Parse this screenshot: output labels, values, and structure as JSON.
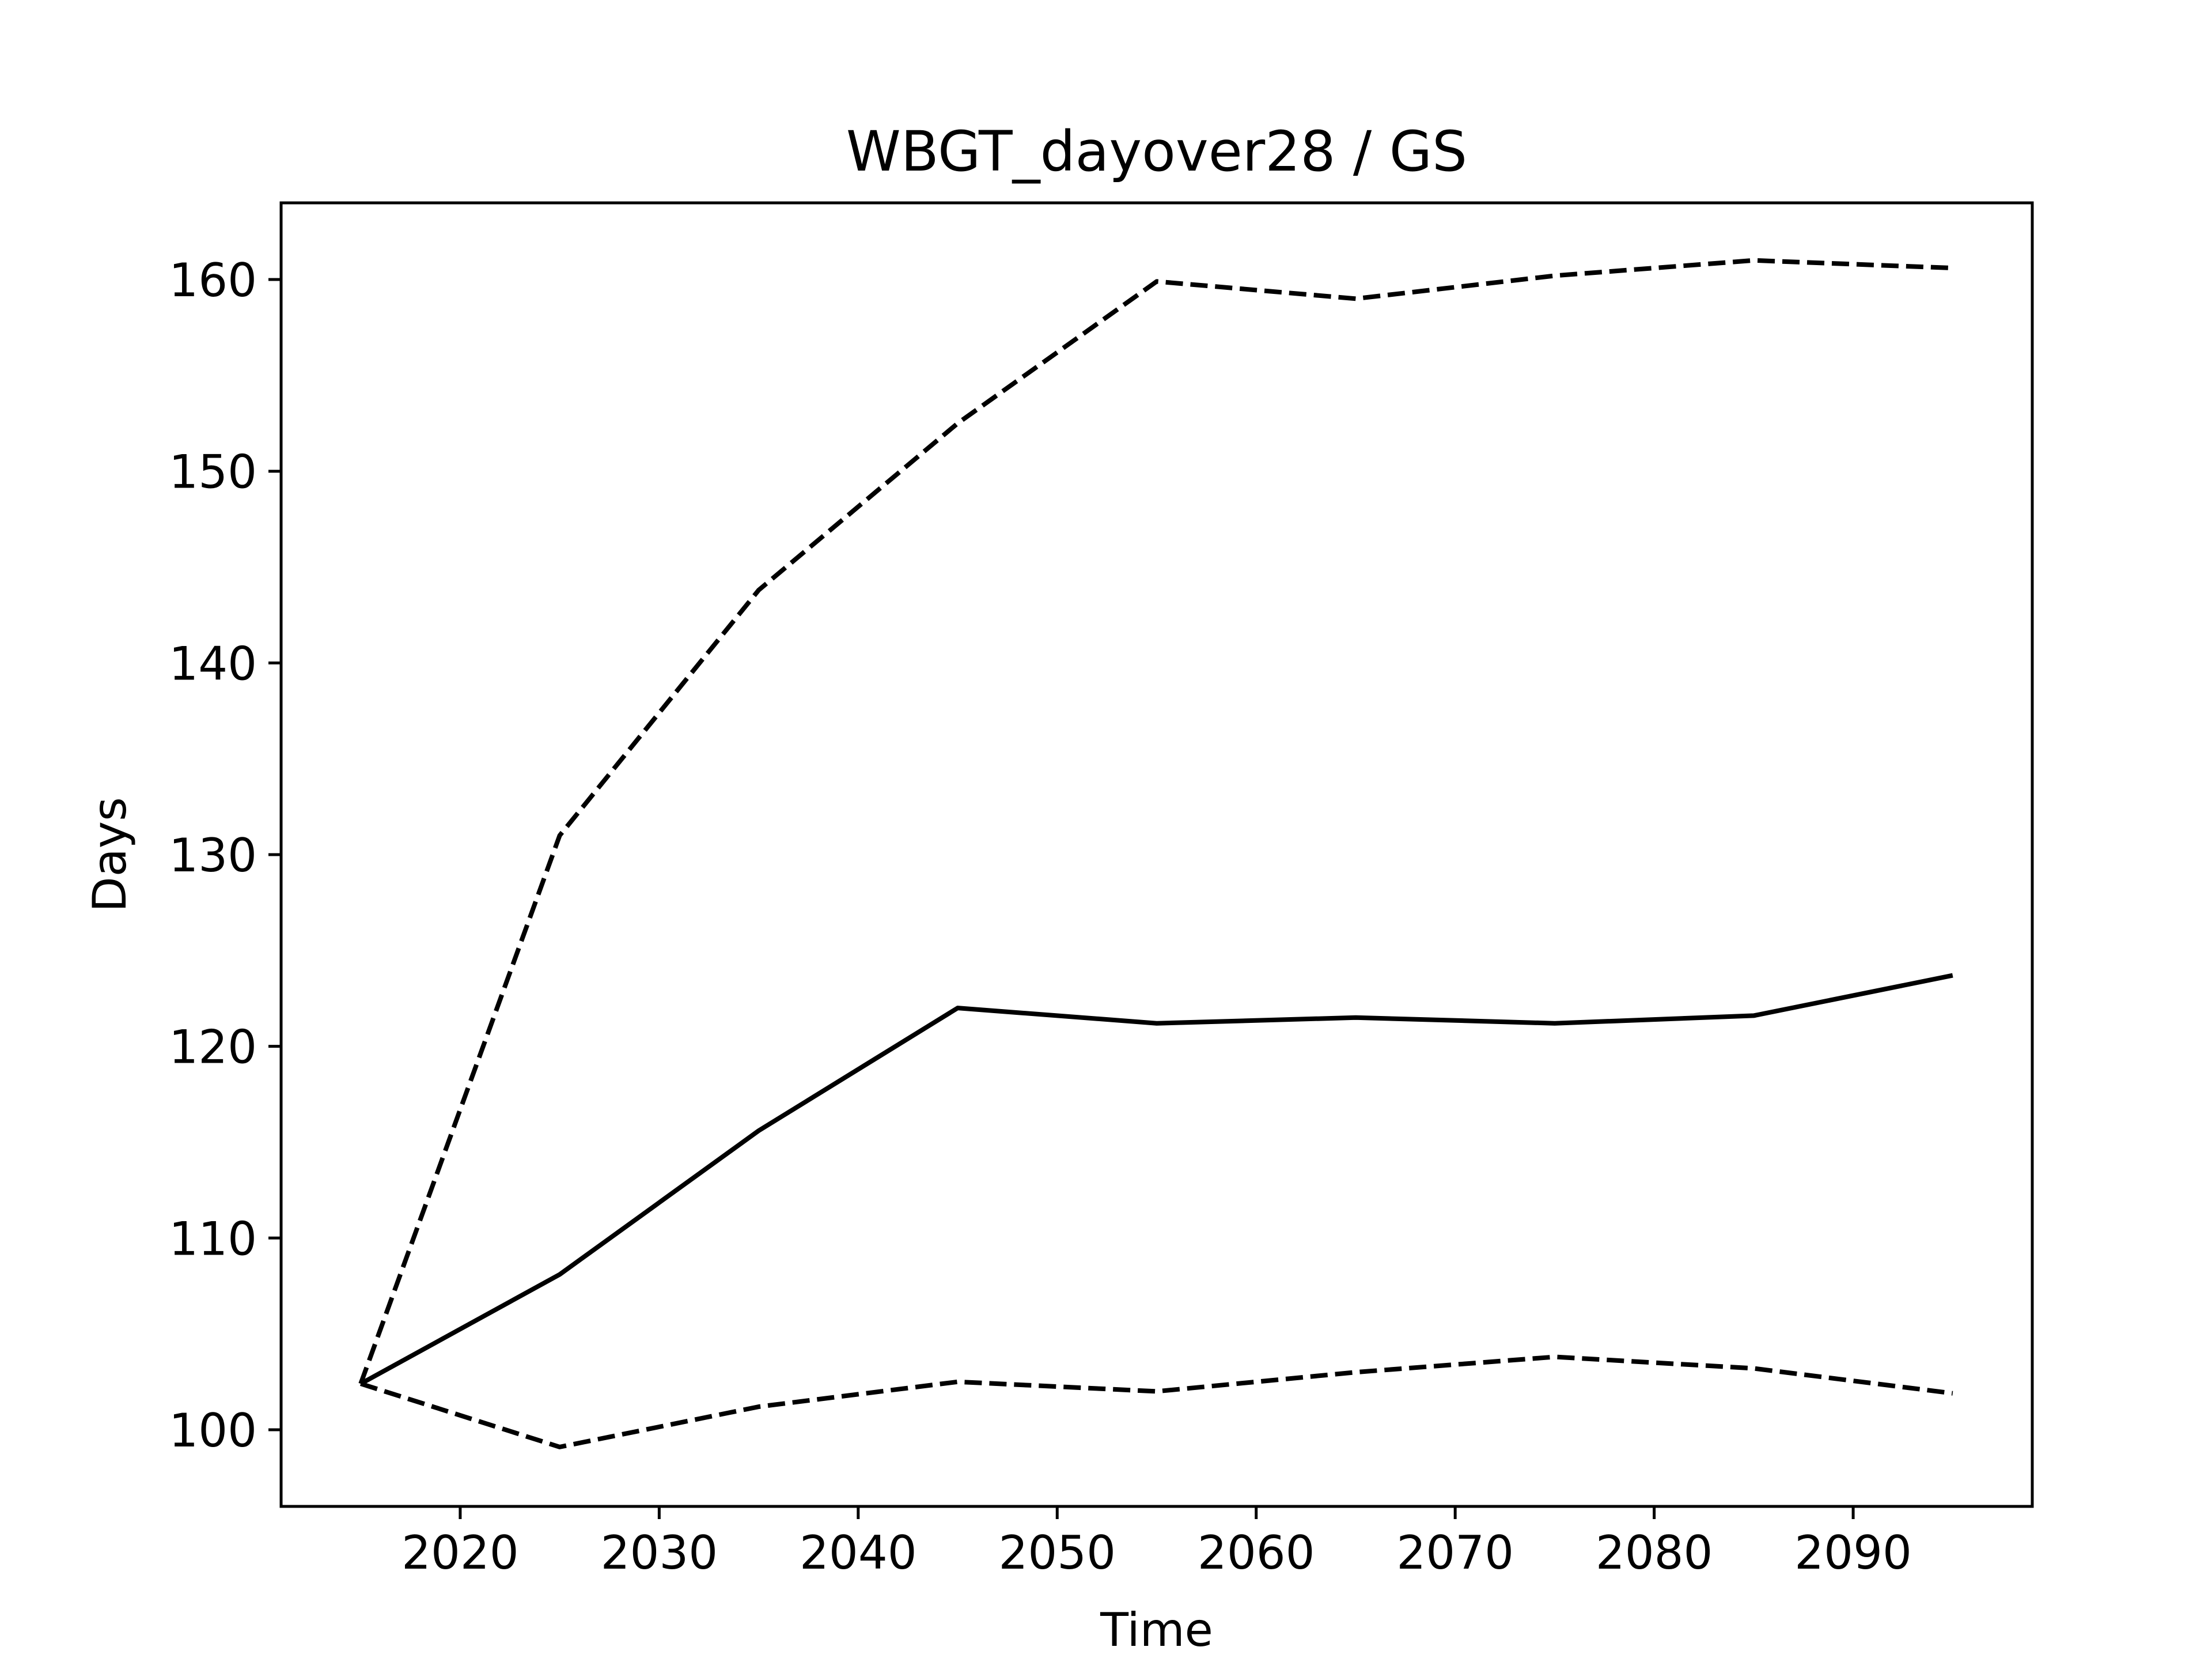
{
  "chart_data": {
    "type": "line",
    "title": "WBGT_dayover28 / GS",
    "xlabel": "Time",
    "ylabel": "Days",
    "xlim": [
      2011,
      2099
    ],
    "ylim": [
      96,
      164
    ],
    "xticks": [
      2020,
      2030,
      2040,
      2050,
      2060,
      2070,
      2080,
      2090
    ],
    "yticks": [
      100,
      110,
      120,
      130,
      140,
      150,
      160
    ],
    "x": [
      2015,
      2025,
      2035,
      2045,
      2055,
      2065,
      2075,
      2085,
      2095
    ],
    "grid": false,
    "legend": "none",
    "series": [
      {
        "style": "solid",
        "color": "#000000",
        "values": [
          102.4,
          108.1,
          115.6,
          122.0,
          121.2,
          121.5,
          121.2,
          121.6,
          123.7
        ]
      },
      {
        "style": "dashed",
        "color": "#000000",
        "values": [
          102.4,
          131.0,
          143.8,
          152.5,
          159.9,
          159.0,
          160.2,
          161.0,
          160.6
        ]
      },
      {
        "style": "dashed",
        "color": "#000000",
        "values": [
          102.4,
          99.1,
          101.2,
          102.5,
          102.0,
          103.0,
          103.8,
          103.2,
          101.9
        ]
      }
    ]
  }
}
